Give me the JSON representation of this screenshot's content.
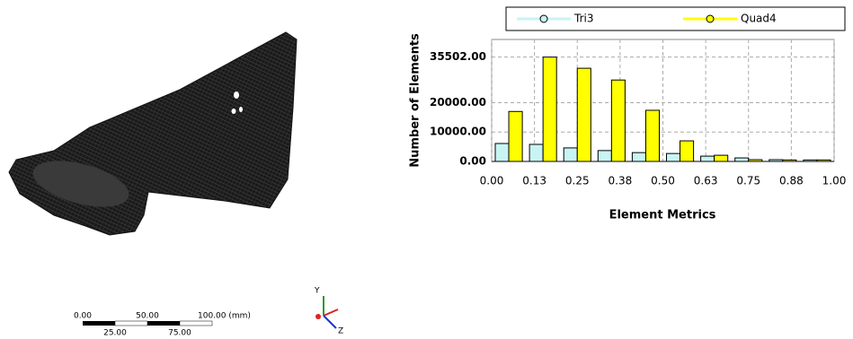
{
  "chart_data": {
    "type": "histogram",
    "y_label": "Number of Elements",
    "x_label": "Element Metrics",
    "bins": [
      0,
      0.1,
      0.2,
      0.3,
      0.4,
      0.5,
      0.6,
      0.7,
      0.8,
      0.9,
      1.0
    ],
    "series": [
      {
        "name": "Tri3",
        "color": "#c8f4f4",
        "values": [
          6100,
          5800,
          4600,
          3700,
          3000,
          2700,
          1800,
          1200,
          600,
          500
        ]
      },
      {
        "name": "Quad4",
        "color": "#ffff00",
        "values": [
          17000,
          35502,
          31700,
          27700,
          17400,
          7000,
          2100,
          600,
          500,
          500
        ]
      }
    ],
    "xlim": [
      0,
      1
    ],
    "xticks": [
      {
        "value": 0,
        "label": "0.00"
      },
      {
        "value": 0.125,
        "label": "0.13"
      },
      {
        "value": 0.25,
        "label": "0.25"
      },
      {
        "value": 0.375,
        "label": "0.38"
      },
      {
        "value": 0.5,
        "label": "0.50"
      },
      {
        "value": 0.625,
        "label": "0.63"
      },
      {
        "value": 0.75,
        "label": "0.75"
      },
      {
        "value": 0.875,
        "label": "0.88"
      },
      {
        "value": 1,
        "label": "1.00"
      }
    ],
    "ylim": [
      0,
      41500
    ],
    "yticks": [
      {
        "value": 0,
        "label": "0.00"
      },
      {
        "value": 10000,
        "label": "10000.00"
      },
      {
        "value": 20000,
        "label": "20000.00"
      },
      {
        "value": 35502,
        "label": "35502.00"
      }
    ],
    "grid": true
  },
  "scale_bar": {
    "top_labels": [
      "0.00",
      "50.00",
      "100.00 (mm)"
    ],
    "bottom_labels": [
      "25.00",
      "75.00"
    ]
  },
  "triad": {
    "y": "Y",
    "z": "Z"
  }
}
